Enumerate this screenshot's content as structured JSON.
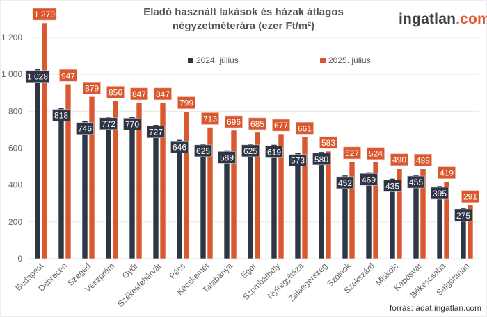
{
  "header": {
    "title_line1": "Eladó használt lakások és házak átlagos",
    "title_line2": "négyzetméterára (ezer Ft/m²)",
    "logo_main": "ingatlan",
    "logo_suffix": ".com"
  },
  "footer": {
    "source": "forrás: adat.ingatlan.com"
  },
  "colors": {
    "series_2024": "#2e3545",
    "series_2025": "#d9582f",
    "grid": "#e8e8e8"
  },
  "chart_data": {
    "type": "bar",
    "title": "Eladó használt lakások és házak átlagos négyzetméterára (ezer Ft/m²)",
    "xlabel": "",
    "ylabel": "",
    "ylim": [
      0,
      1300
    ],
    "yticks": [
      0,
      200,
      400,
      600,
      800,
      1000,
      1200
    ],
    "ytick_labels": [
      "0",
      "200",
      "400",
      "600",
      "800",
      "1 000",
      "1 200"
    ],
    "grid": true,
    "legend_position": "top-center",
    "categories": [
      "Budapest",
      "Debrecen",
      "Szeged",
      "Veszprém",
      "Győr",
      "Székesfehérvár",
      "Pécs",
      "Kecskemét",
      "Tatabánya",
      "Eger",
      "Szombathely",
      "Nyíregyháza",
      "Zalaegerszeg",
      "Szolnok",
      "Szekszárd",
      "Miskolc",
      "Kaposvár",
      "Békéscsaba",
      "Salgótarján"
    ],
    "series": [
      {
        "name": "2024. július",
        "color": "#2e3545",
        "values": [
          1028,
          818,
          746,
          772,
          770,
          727,
          646,
          625,
          589,
          625,
          619,
          573,
          580,
          452,
          469,
          435,
          455,
          395,
          275
        ],
        "labels": [
          "1 028",
          "818",
          "746",
          "772",
          "770",
          "727",
          "646",
          "625",
          "589",
          "625",
          "619",
          "573",
          "580",
          "452",
          "469",
          "435",
          "455",
          "395",
          "275"
        ]
      },
      {
        "name": "2025. július",
        "color": "#d9582f",
        "values": [
          1279,
          947,
          879,
          856,
          847,
          847,
          799,
          713,
          696,
          685,
          677,
          661,
          583,
          527,
          524,
          490,
          488,
          419,
          291
        ],
        "labels": [
          "1 279",
          "947",
          "879",
          "856",
          "847",
          "847",
          "799",
          "713",
          "696",
          "685",
          "677",
          "661",
          "583",
          "527",
          "524",
          "490",
          "488",
          "419",
          "291"
        ]
      }
    ]
  }
}
